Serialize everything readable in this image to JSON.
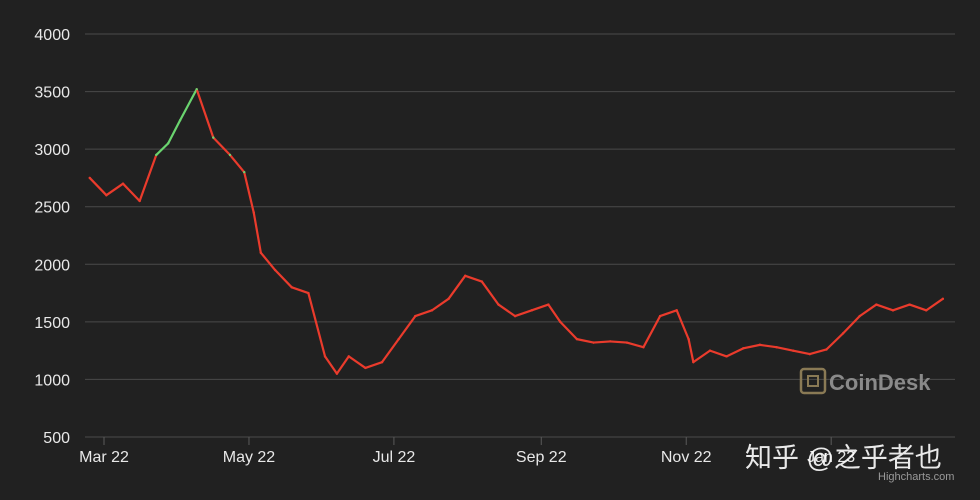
{
  "chart_data": {
    "type": "line",
    "ylim": [
      500,
      4000
    ],
    "y_ticks": [
      "4000",
      "3500",
      "3000",
      "2500",
      "2000",
      "1500",
      "1000",
      "500"
    ],
    "x_tick_labels": [
      "Mar 22",
      "May 22",
      "Jul 22",
      "Sep 22",
      "Nov 22",
      "Jan 23"
    ],
    "x": [
      "Mar 01",
      "Mar 08",
      "Mar 15",
      "Mar 22",
      "Mar 29",
      "Apr 03",
      "Apr 08",
      "Apr 15",
      "Apr 22",
      "Apr 29",
      "May 05",
      "May 09",
      "May 12",
      "May 18",
      "May 25",
      "Jun 01",
      "Jun 08",
      "Jun 13",
      "Jun 18",
      "Jun 25",
      "Jul 02",
      "Jul 09",
      "Jul 16",
      "Jul 23",
      "Jul 30",
      "Aug 06",
      "Aug 13",
      "Aug 20",
      "Aug 27",
      "Sep 03",
      "Sep 10",
      "Sep 15",
      "Sep 22",
      "Sep 29",
      "Oct 06",
      "Oct 13",
      "Oct 20",
      "Oct 27",
      "Nov 03",
      "Nov 08",
      "Nov 10",
      "Nov 17",
      "Nov 24",
      "Dec 01",
      "Dec 08",
      "Dec 15",
      "Dec 22",
      "Dec 29",
      "Jan 05",
      "Jan 12",
      "Jan 19",
      "Jan 26",
      "Feb 02",
      "Feb 09",
      "Feb 16",
      "Feb 23"
    ],
    "values": [
      2750,
      2600,
      2700,
      2550,
      2950,
      3050,
      3250,
      3520,
      3100,
      2950,
      2800,
      2450,
      2100,
      1950,
      1800,
      1750,
      1200,
      1050,
      1200,
      1100,
      1150,
      1350,
      1550,
      1600,
      1700,
      1900,
      1850,
      1650,
      1550,
      1600,
      1650,
      1500,
      1350,
      1320,
      1330,
      1320,
      1280,
      1550,
      1600,
      1350,
      1150,
      1250,
      1200,
      1270,
      1300,
      1280,
      1250,
      1220,
      1260,
      1400,
      1550,
      1650,
      1600,
      1650,
      1600,
      1700
    ],
    "up_color": "#6ad46f",
    "down_color": "#ea3b2c",
    "grid": true
  },
  "watermark": {
    "brand": "CoinDesk",
    "zh": "知乎 @之乎者也",
    "credits": "Highcharts.com"
  }
}
